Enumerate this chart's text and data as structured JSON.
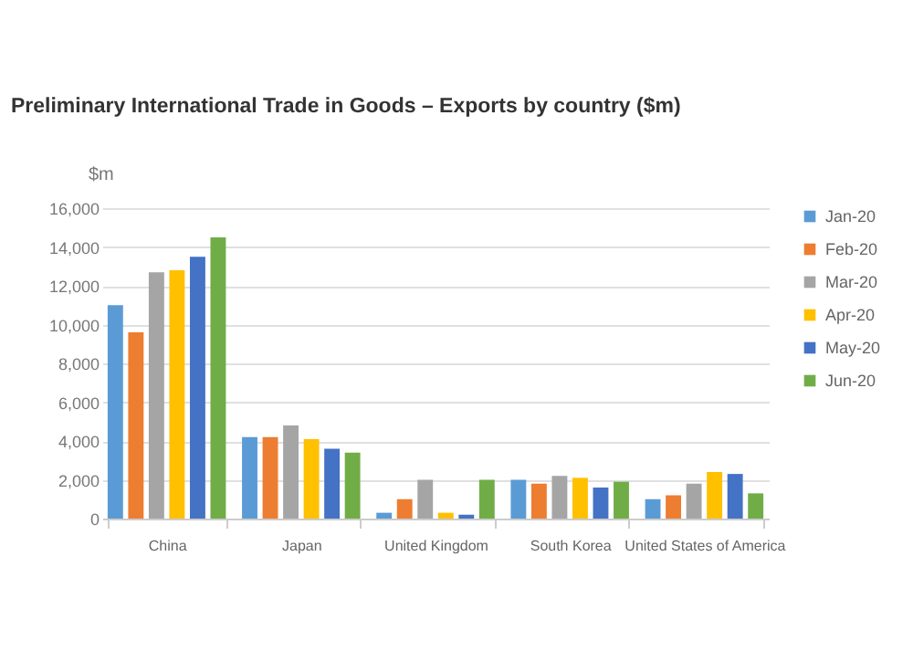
{
  "chart_data": {
    "type": "bar",
    "title": "Preliminary International Trade in Goods – Exports by country ($m)",
    "ylabel": "$m",
    "categories": [
      "China",
      "Japan",
      "United Kingdom",
      "South Korea",
      "United States of America"
    ],
    "series": [
      {
        "name": "Jan-20",
        "color": "#5b9bd5",
        "values": [
          11000,
          4200,
          300,
          2000,
          1000
        ]
      },
      {
        "name": "Feb-20",
        "color": "#ed7d31",
        "values": [
          9600,
          4200,
          1000,
          1800,
          1200
        ]
      },
      {
        "name": "Mar-20",
        "color": "#a5a5a5",
        "values": [
          12700,
          4800,
          2000,
          2200,
          1800
        ]
      },
      {
        "name": "Apr-20",
        "color": "#ffc000",
        "values": [
          12800,
          4100,
          300,
          2100,
          2400
        ]
      },
      {
        "name": "May-20",
        "color": "#4472c4",
        "values": [
          13500,
          3600,
          200,
          1600,
          2300
        ]
      },
      {
        "name": "Jun-20",
        "color": "#70ad47",
        "values": [
          14500,
          3400,
          2000,
          1900,
          1300
        ]
      }
    ],
    "ylim": [
      0,
      16000
    ],
    "yticks": [
      0,
      {
        "value": 2000,
        "label": "2,000"
      },
      {
        "value": 4000,
        "label": "4,000"
      },
      {
        "value": 6000,
        "label": "6,000"
      },
      {
        "value": 8000,
        "label": "8,000"
      },
      {
        "value": 10000,
        "label": "10,000"
      },
      {
        "value": 12000,
        "label": "12,000"
      },
      {
        "value": 14000,
        "label": "14,000"
      },
      {
        "value": 16000,
        "label": "16,000"
      }
    ],
    "grid": "y",
    "legend": "right"
  }
}
